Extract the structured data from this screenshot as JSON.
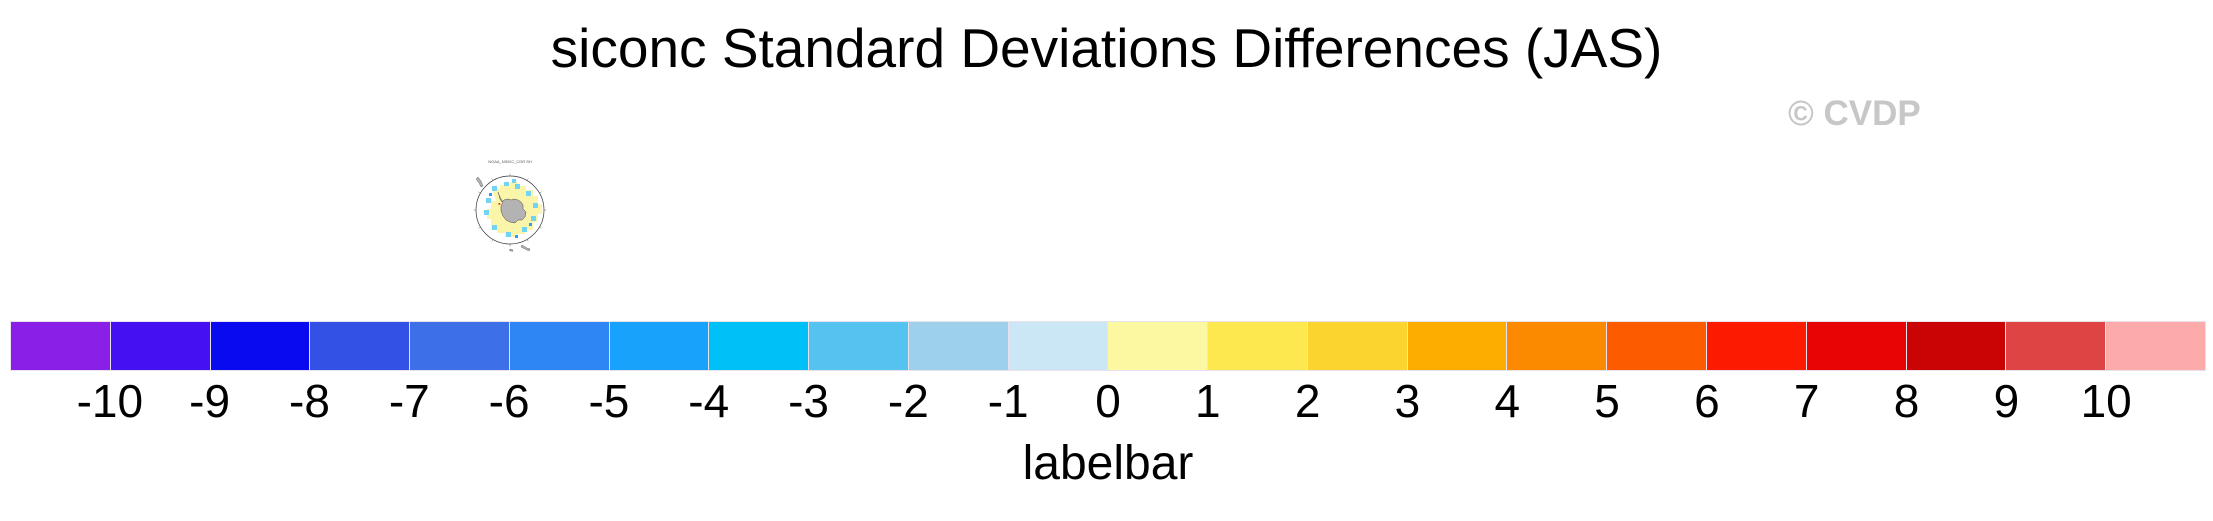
{
  "title": "siconc Standard Deviations Differences (JAS)",
  "watermark": "© CVDP",
  "thumbnail": {
    "title": "NOAA_NSIDC_CDR SH"
  },
  "chart_data": {
    "type": "heatmap",
    "title": "siconc Standard Deviations Differences (JAS)",
    "colorbar": {
      "label": "labelbar",
      "orientation": "horizontal",
      "tick_labels": [
        "-10",
        "-9",
        "-8",
        "-7",
        "-6",
        "-5",
        "-4",
        "-3",
        "-2",
        "-1",
        "0",
        "1",
        "2",
        "3",
        "4",
        "5",
        "6",
        "7",
        "8",
        "9",
        "10"
      ],
      "segment_colors": [
        "#8a1fe8",
        "#4511f0",
        "#0a0af0",
        "#3351e4",
        "#3d6fe8",
        "#2e86f5",
        "#18a2fb",
        "#00c0f8",
        "#55c3f0",
        "#9dd0ea",
        "#cbe6f5",
        "#fcf8a2",
        "#fde84f",
        "#fcd42f",
        "#fdad00",
        "#fc8a00",
        "#fc5b00",
        "#fc1a00",
        "#e80404",
        "#ca0404",
        "#de4444",
        "#fdaaaa"
      ]
    }
  }
}
